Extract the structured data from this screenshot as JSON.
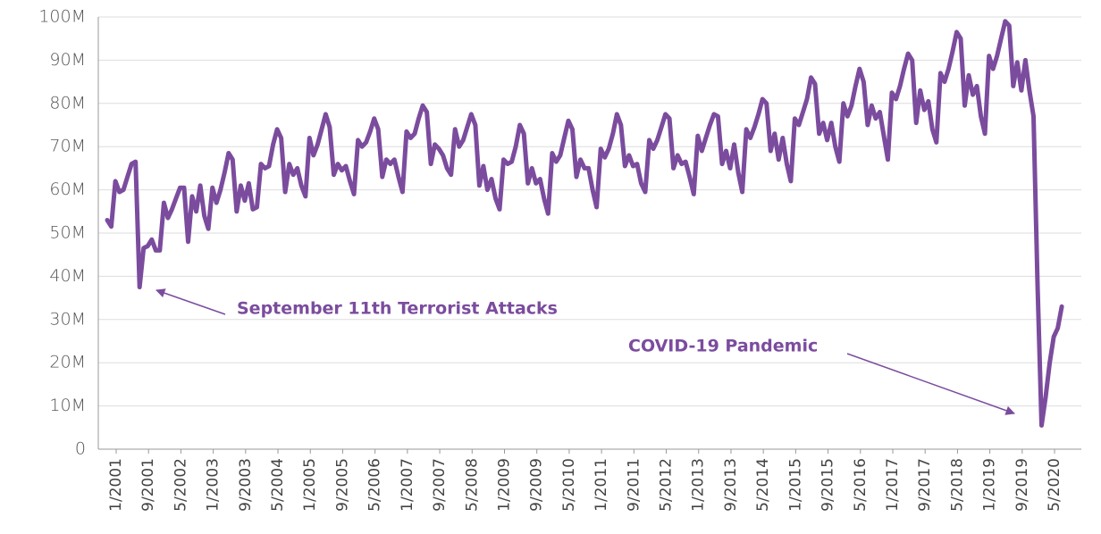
{
  "chart_data": {
    "type": "line",
    "categories": [
      "1/2001",
      null,
      null,
      null,
      null,
      null,
      null,
      null,
      "9/2001",
      null,
      null,
      null,
      null,
      null,
      null,
      null,
      "5/2002",
      null,
      null,
      null,
      null,
      null,
      null,
      null,
      "1/2003",
      null,
      null,
      null,
      null,
      null,
      null,
      null,
      "9/2003",
      null,
      null,
      null,
      null,
      null,
      null,
      null,
      "5/2004",
      null,
      null,
      null,
      null,
      null,
      null,
      null,
      "1/2005",
      null,
      null,
      null,
      null,
      null,
      null,
      null,
      "9/2005",
      null,
      null,
      null,
      null,
      null,
      null,
      null,
      "5/2006",
      null,
      null,
      null,
      null,
      null,
      null,
      null,
      "1/2007",
      null,
      null,
      null,
      null,
      null,
      null,
      null,
      "9/2007",
      null,
      null,
      null,
      null,
      null,
      null,
      null,
      "5/2008",
      null,
      null,
      null,
      null,
      null,
      null,
      null,
      "1/2009",
      null,
      null,
      null,
      null,
      null,
      null,
      null,
      "9/2009",
      null,
      null,
      null,
      null,
      null,
      null,
      null,
      "5/2010",
      null,
      null,
      null,
      null,
      null,
      null,
      null,
      "1/2011",
      null,
      null,
      null,
      null,
      null,
      null,
      null,
      "9/2011",
      null,
      null,
      null,
      null,
      null,
      null,
      null,
      "5/2012",
      null,
      null,
      null,
      null,
      null,
      null,
      null,
      "1/2013",
      null,
      null,
      null,
      null,
      null,
      null,
      null,
      "9/2013",
      null,
      null,
      null,
      null,
      null,
      null,
      null,
      "5/2014",
      null,
      null,
      null,
      null,
      null,
      null,
      null,
      "1/2015",
      null,
      null,
      null,
      null,
      null,
      null,
      null,
      "9/2015",
      null,
      null,
      null,
      null,
      null,
      null,
      null,
      "5/2016",
      null,
      null,
      null,
      null,
      null,
      null,
      null,
      "1/2017",
      null,
      null,
      null,
      null,
      null,
      null,
      null,
      "9/2017",
      null,
      null,
      null,
      null,
      null,
      null,
      null,
      "5/2018",
      null,
      null,
      null,
      null,
      null,
      null,
      null,
      "1/2019",
      null,
      null,
      null,
      null,
      null,
      null,
      null,
      "9/2019",
      null,
      null,
      null,
      null,
      null,
      null,
      null,
      "5/2020",
      null,
      null,
      null,
      null
    ],
    "values": [
      53,
      51.5,
      62,
      59.5,
      60,
      63,
      66,
      66.5,
      37.5,
      46.5,
      47,
      48.5,
      46,
      46,
      57,
      53.5,
      55.5,
      58,
      60.5,
      60.5,
      48,
      58.5,
      55,
      61,
      54,
      51,
      60.5,
      57,
      60,
      64,
      68.5,
      67,
      55,
      61,
      57.5,
      61.5,
      55.5,
      56,
      66,
      65,
      65.5,
      70.5,
      74,
      72,
      59.5,
      66,
      63.5,
      65,
      61,
      58.5,
      72,
      68,
      70.5,
      74,
      77.5,
      74.5,
      63.5,
      66,
      64.5,
      65.5,
      62,
      59,
      71.5,
      70,
      71,
      73.5,
      76.5,
      74,
      63,
      67,
      66,
      67,
      63,
      59.5,
      73.5,
      72,
      73,
      76.5,
      79.5,
      78,
      66,
      70.5,
      69.5,
      68,
      65,
      63.5,
      74,
      70,
      71.5,
      74.5,
      77.5,
      75,
      61,
      65.5,
      60,
      62.5,
      58,
      55.5,
      67,
      66,
      66.5,
      70,
      75,
      73,
      61.5,
      65,
      61.5,
      62.5,
      58,
      54.5,
      68.5,
      66.5,
      68,
      72,
      76,
      74,
      63,
      67,
      65,
      65,
      60,
      56,
      69.5,
      67.5,
      69.5,
      73,
      77.5,
      75,
      65.5,
      68,
      65.5,
      66,
      61.5,
      59.5,
      71.5,
      69.5,
      71.5,
      74.5,
      77.5,
      76.5,
      65,
      68,
      66,
      66.5,
      63,
      59,
      72.5,
      69,
      72,
      75,
      77.5,
      77,
      66,
      69,
      65,
      70.5,
      64,
      59.5,
      74,
      72,
      74.5,
      77.5,
      81,
      80,
      69,
      73,
      67,
      72,
      66,
      62,
      76.5,
      75,
      78,
      81,
      86,
      84.5,
      73,
      75.5,
      71.5,
      75.5,
      70,
      66.5,
      80,
      77,
      79.5,
      84,
      88,
      85,
      75,
      79.5,
      76.5,
      78,
      72.5,
      67,
      82.5,
      81,
      84,
      88,
      91.5,
      90,
      75.5,
      83,
      78.5,
      80.5,
      74,
      71,
      87,
      85,
      88,
      92,
      96.5,
      95,
      79.5,
      86.5,
      82,
      84,
      77,
      73,
      91,
      88,
      91,
      95,
      99,
      98,
      84,
      89.5,
      83,
      90,
      83,
      77,
      38,
      5.5,
      12,
      20,
      26,
      28,
      33
    ],
    "color": "#7b4c9e",
    "ylim": [
      0,
      100
    ],
    "yticks": [
      0,
      {
        "value": 10,
        "label": "10M"
      },
      {
        "value": 20,
        "label": "20M"
      },
      {
        "value": 30,
        "label": "30M"
      },
      {
        "value": 40,
        "label": "40M"
      },
      {
        "value": 50,
        "label": "50M"
      },
      {
        "value": 60,
        "label": "60M"
      },
      {
        "value": 70,
        "label": "70M"
      },
      {
        "value": 80,
        "label": "80M"
      },
      {
        "value": 90,
        "label": "90M"
      },
      {
        "value": 100,
        "label": "100M"
      }
    ],
    "grid": true,
    "annotations": [
      {
        "text": "September 11th Terrorist Attacks"
      },
      {
        "text": "COVID-19 Pandemic"
      }
    ]
  }
}
